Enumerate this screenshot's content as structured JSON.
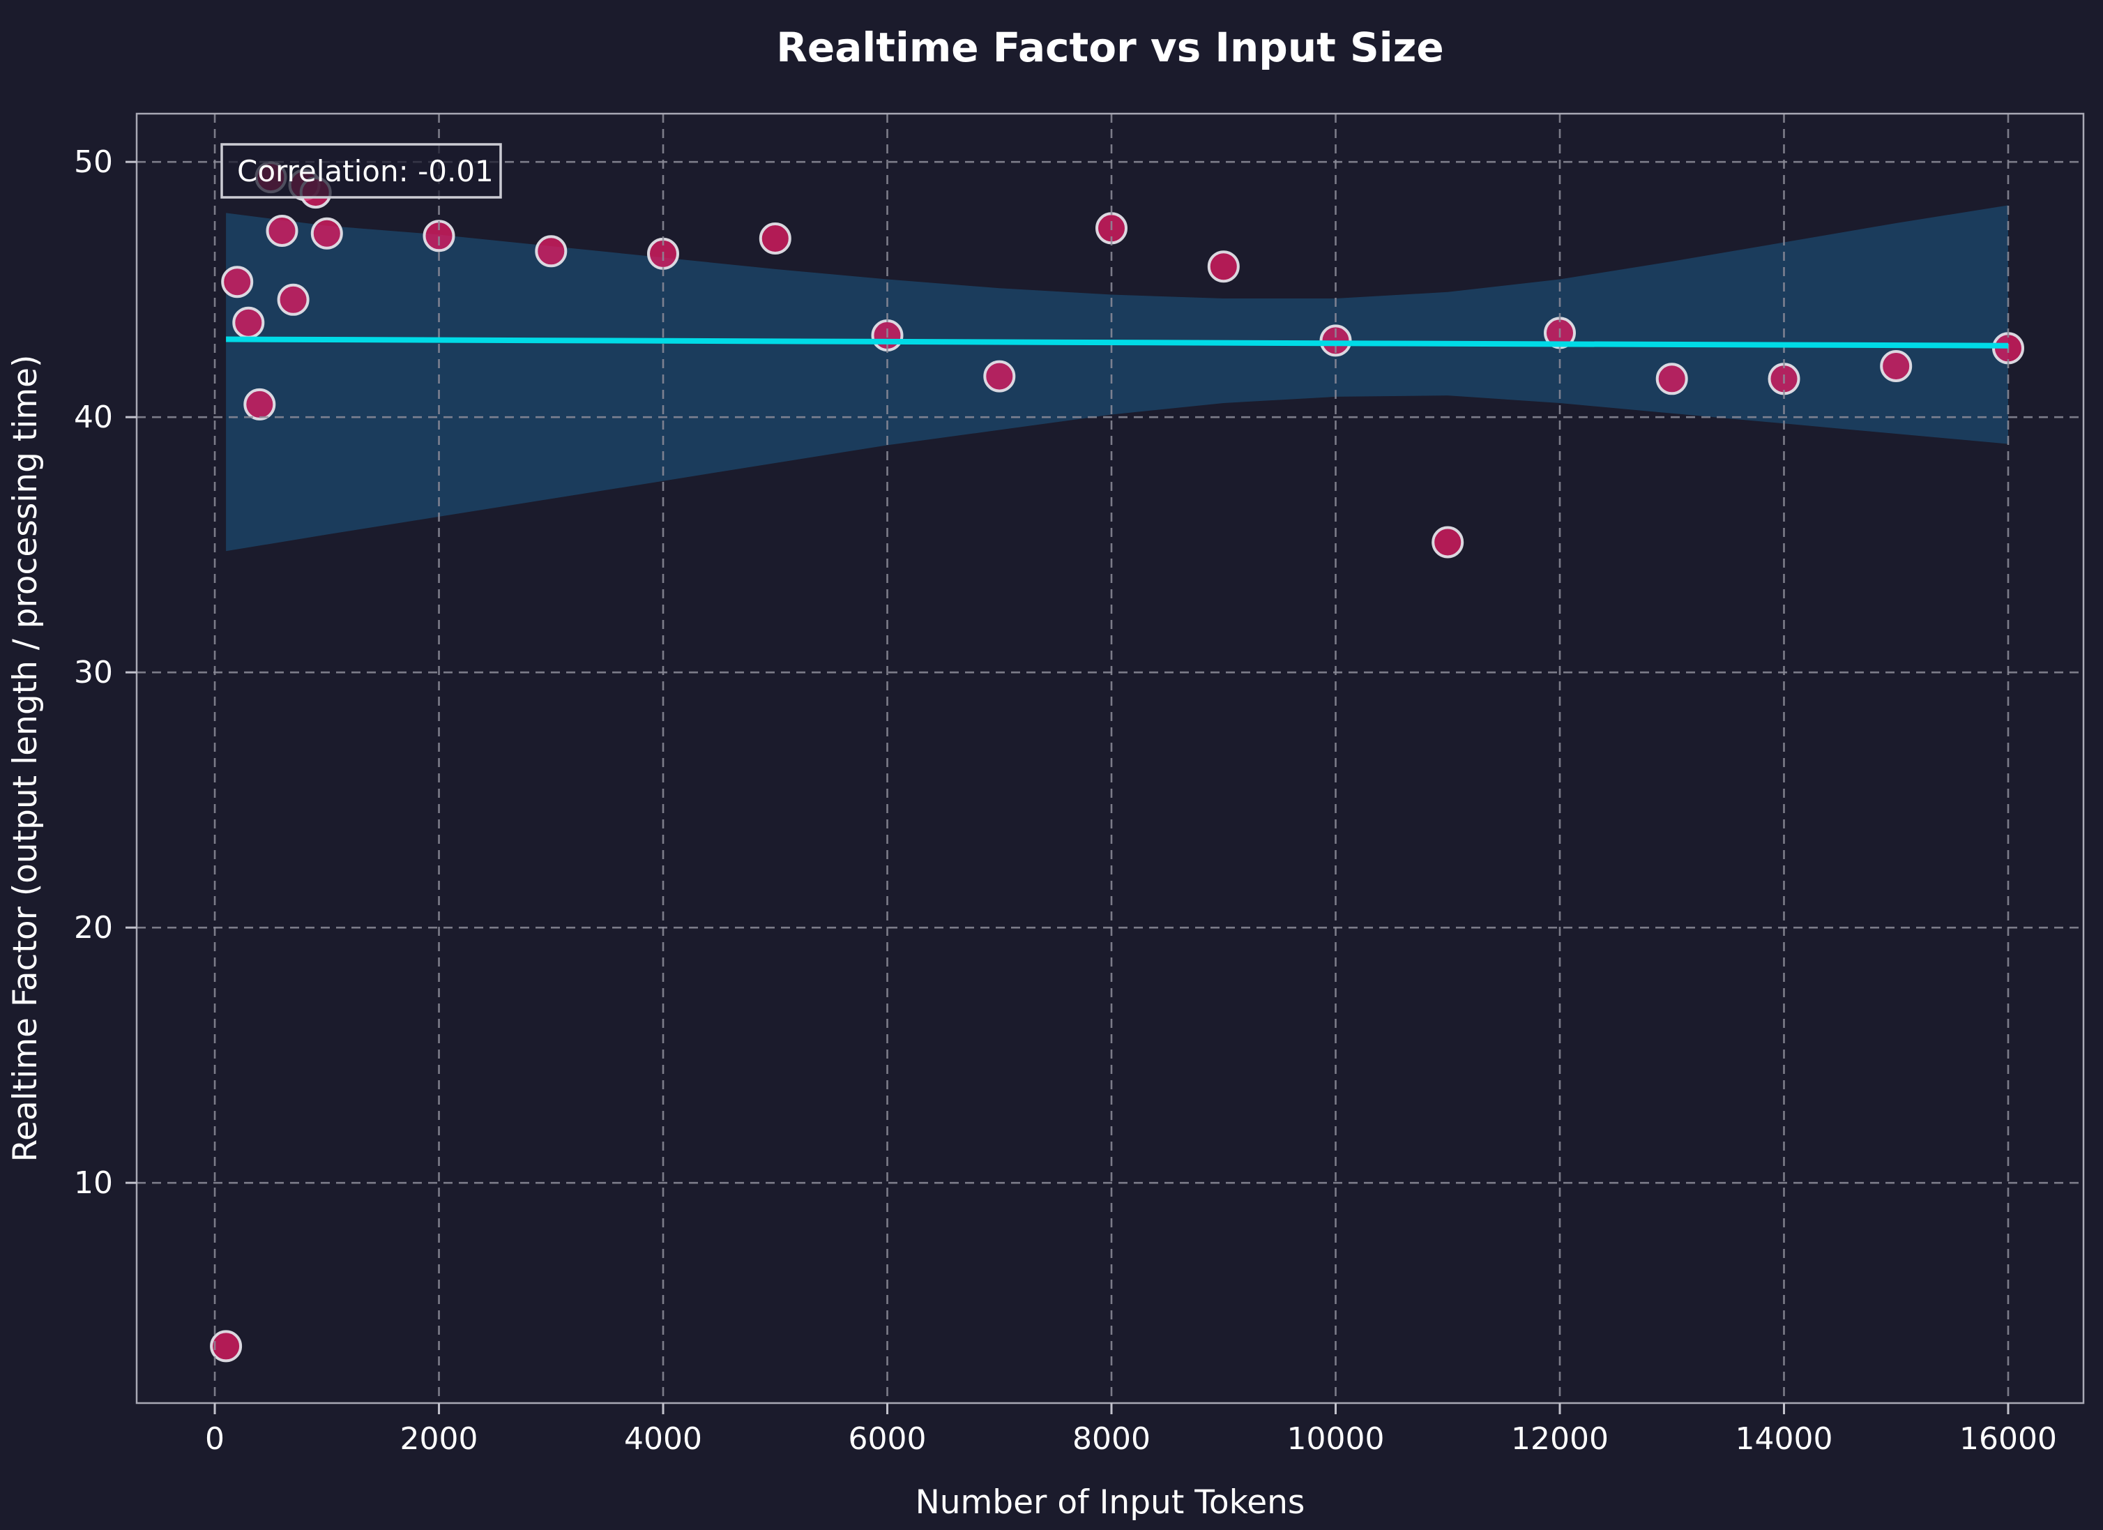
{
  "chart_data": {
    "type": "scatter",
    "title": "Realtime Factor vs Input Size",
    "xlabel": "Number of Input Tokens",
    "ylabel": "Realtime Factor (output length / processing time)",
    "annotation": "Correlation: -0.01",
    "xlim": [
      -697,
      16672
    ],
    "ylim": [
      1.37,
      51.89
    ],
    "xticks": [
      0,
      2000,
      4000,
      6000,
      8000,
      10000,
      12000,
      14000,
      16000
    ],
    "yticks": [
      10,
      20,
      30,
      40,
      50
    ],
    "grid": "dashed",
    "legend": "none",
    "points": [
      [
        100,
        3.6
      ],
      [
        200,
        45.3
      ],
      [
        300,
        43.7
      ],
      [
        400,
        40.5
      ],
      [
        500,
        49.4
      ],
      [
        600,
        47.3
      ],
      [
        700,
        44.6
      ],
      [
        800,
        49.1
      ],
      [
        900,
        48.8
      ],
      [
        1000,
        47.2
      ],
      [
        2000,
        47.1
      ],
      [
        3000,
        46.5
      ],
      [
        4000,
        46.4
      ],
      [
        5000,
        47.0
      ],
      [
        6000,
        43.2
      ],
      [
        7000,
        41.6
      ],
      [
        8000,
        47.4
      ],
      [
        9000,
        45.9
      ],
      [
        10000,
        43.0
      ],
      [
        11000,
        35.1
      ],
      [
        12000,
        43.3
      ],
      [
        13000,
        41.5
      ],
      [
        14000,
        41.5
      ],
      [
        15000,
        42.0
      ],
      [
        16000,
        42.7
      ]
    ],
    "regression": {
      "line": {
        "x": [
          100,
          16000
        ],
        "y": [
          43.05,
          42.8
        ]
      },
      "band": {
        "x": [
          100,
          1000,
          2000,
          3000,
          4000,
          5000,
          6000,
          7000,
          8000,
          9000,
          10000,
          11000,
          12000,
          13000,
          14000,
          15000,
          16000
        ],
        "top": [
          48.0,
          47.5,
          47.15,
          46.7,
          46.25,
          45.8,
          45.4,
          45.05,
          44.8,
          44.65,
          44.65,
          44.9,
          45.4,
          46.1,
          46.85,
          47.6,
          48.3
        ],
        "bottom": [
          34.75,
          35.4,
          36.1,
          36.8,
          37.5,
          38.2,
          38.9,
          39.5,
          40.1,
          40.55,
          40.8,
          40.85,
          40.55,
          40.15,
          39.75,
          39.35,
          38.95
        ]
      }
    },
    "colors": {
      "background": "#1b1b2c",
      "point_fill": "rgba(216,27,96,0.8)",
      "point_edge": "rgba(225,225,232,0.95)",
      "trend_line": "#00dbe7",
      "band_fill": "rgba(30,150,220,0.27)",
      "gridline": "#8d8d9a",
      "spine": "#a9a9b5",
      "tick": "#c2c2cc",
      "text": "#ffffff",
      "annotation_border": "#ccccd4",
      "annotation_fill": "rgba(27,27,44,0.72)"
    }
  }
}
